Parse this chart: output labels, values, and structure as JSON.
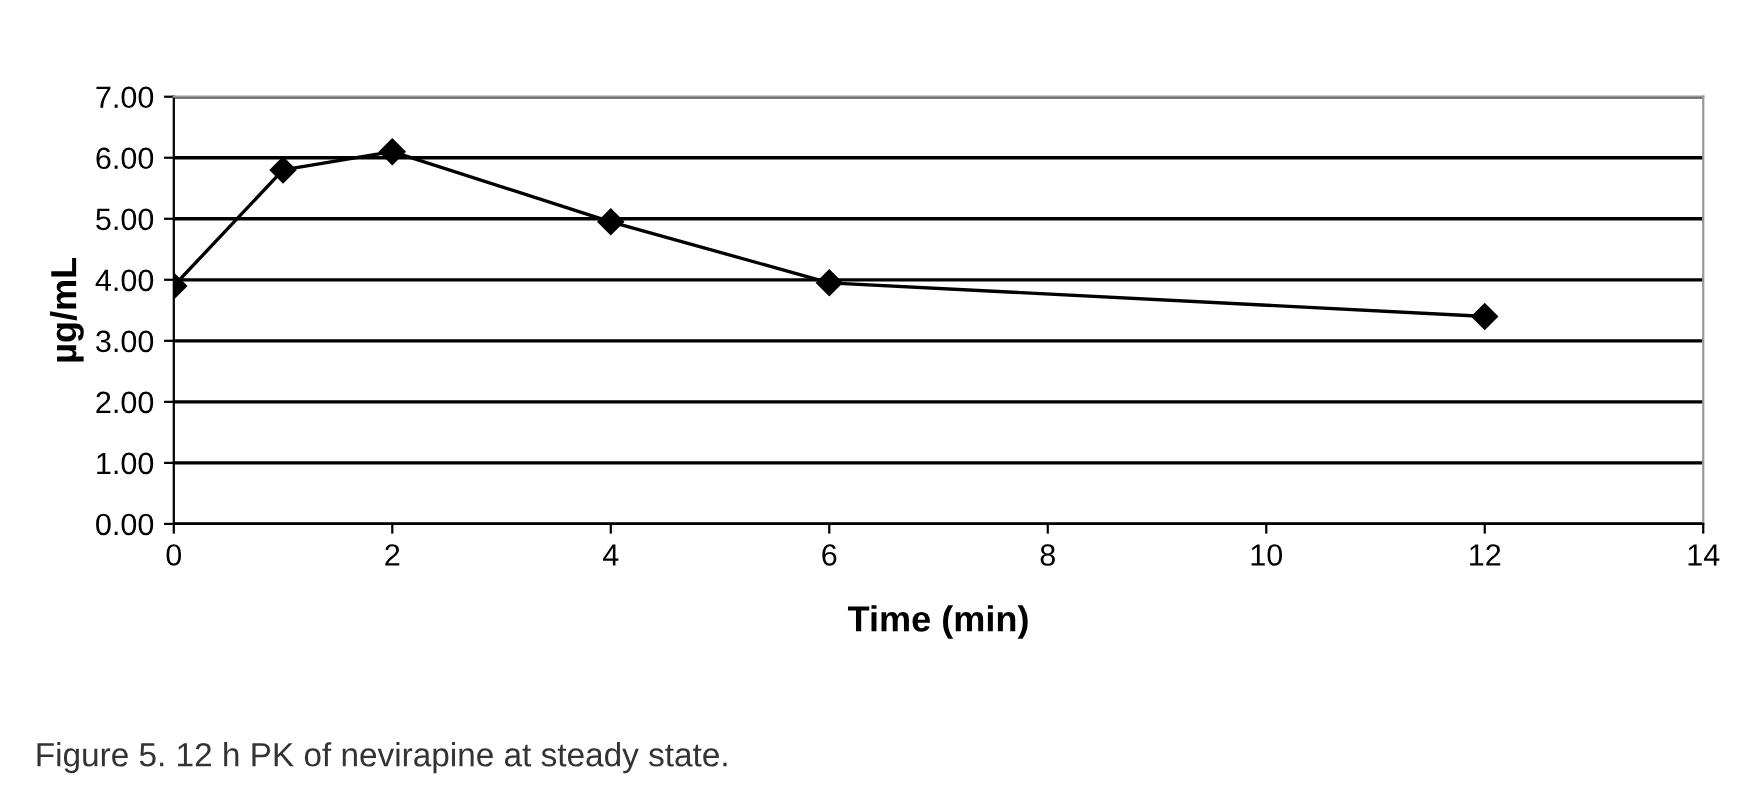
{
  "chart_data": {
    "type": "line",
    "xlabel": "Time (min)",
    "ylabel": "µg/mL",
    "x": [
      0,
      1,
      2,
      4,
      6,
      12
    ],
    "series": [
      {
        "color": "#000000",
        "values": [
          3.9,
          5.8,
          6.1,
          4.95,
          3.95,
          3.4
        ]
      }
    ],
    "xlim": [
      0,
      14
    ],
    "xticks": [
      0,
      2,
      4,
      6,
      8,
      10,
      12,
      14
    ],
    "ylim": [
      0,
      7
    ],
    "yticks": [
      {
        "value": 0,
        "label": "0.00"
      },
      {
        "value": 1,
        "label": "1.00"
      },
      {
        "value": 2,
        "label": "2.00"
      },
      {
        "value": 3,
        "label": "3.00"
      },
      {
        "value": 4,
        "label": "4.00"
      },
      {
        "value": 5,
        "label": "5.00"
      },
      {
        "value": 6,
        "label": "6.00"
      },
      {
        "value": 7,
        "label": "7.00"
      }
    ],
    "grid": "y",
    "marker": "diamond",
    "line_style": "solid",
    "legend": false,
    "annotations": [
      "Figure 5. 12 h PK of nevirapine at steady state."
    ]
  }
}
